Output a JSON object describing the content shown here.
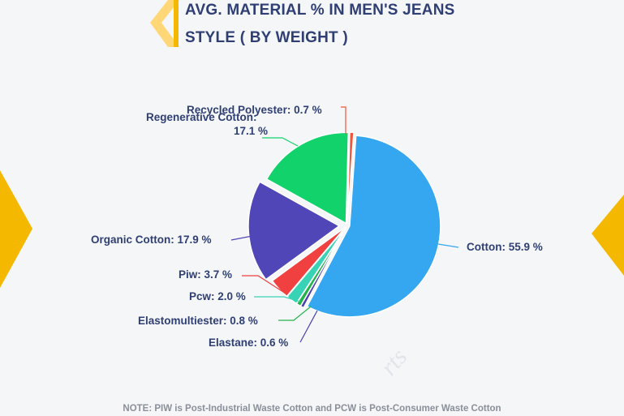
{
  "title_line1": "AVG. MATERIAL % IN MEN'S JEANS",
  "title_line2": "STYLE ( BY WEIGHT )",
  "note": "NOTE: PIW is Post-Industrial Waste Cotton and PCW is Post-Consumer Waste Cotton",
  "watermark": "rts",
  "colors": {
    "title": "#2f3f73",
    "accent": "#f5b800"
  },
  "chart_data": {
    "type": "pie",
    "title": "AVG. MATERIAL % IN MEN'S JEANS STYLE ( BY WEIGHT )",
    "unit": "%",
    "slices": [
      {
        "label": "Cotton",
        "value": 55.9,
        "text": "Cotton: 55.9 %",
        "color": "#35a7f0"
      },
      {
        "label": "Elastane",
        "value": 0.6,
        "text": "Elastane: 0.6 %",
        "color": "#4b3fae"
      },
      {
        "label": "Elastomultiester",
        "value": 0.8,
        "text": "Elastomultiester: 0.8 %",
        "color": "#24b24a"
      },
      {
        "label": "Pcw",
        "value": 2.0,
        "text": "Pcw: 2.0 %",
        "color": "#38d3b5"
      },
      {
        "label": "Piw",
        "value": 3.7,
        "text": "Piw: 3.7 %",
        "color": "#f04040"
      },
      {
        "label": "Organic Cotton",
        "value": 17.9,
        "text": "Organic Cotton: 17.9 %",
        "color": "#5146b7"
      },
      {
        "label": "Regenerative Cotton",
        "value": 17.1,
        "text": [
          "Regenerative Cotton:",
          "17.1 %"
        ],
        "color": "#12d36b"
      },
      {
        "label": "Recycled Polyester",
        "value": 0.7,
        "text": "Recycled Polyester: 0.7 %",
        "color": "#f0553a"
      }
    ]
  }
}
